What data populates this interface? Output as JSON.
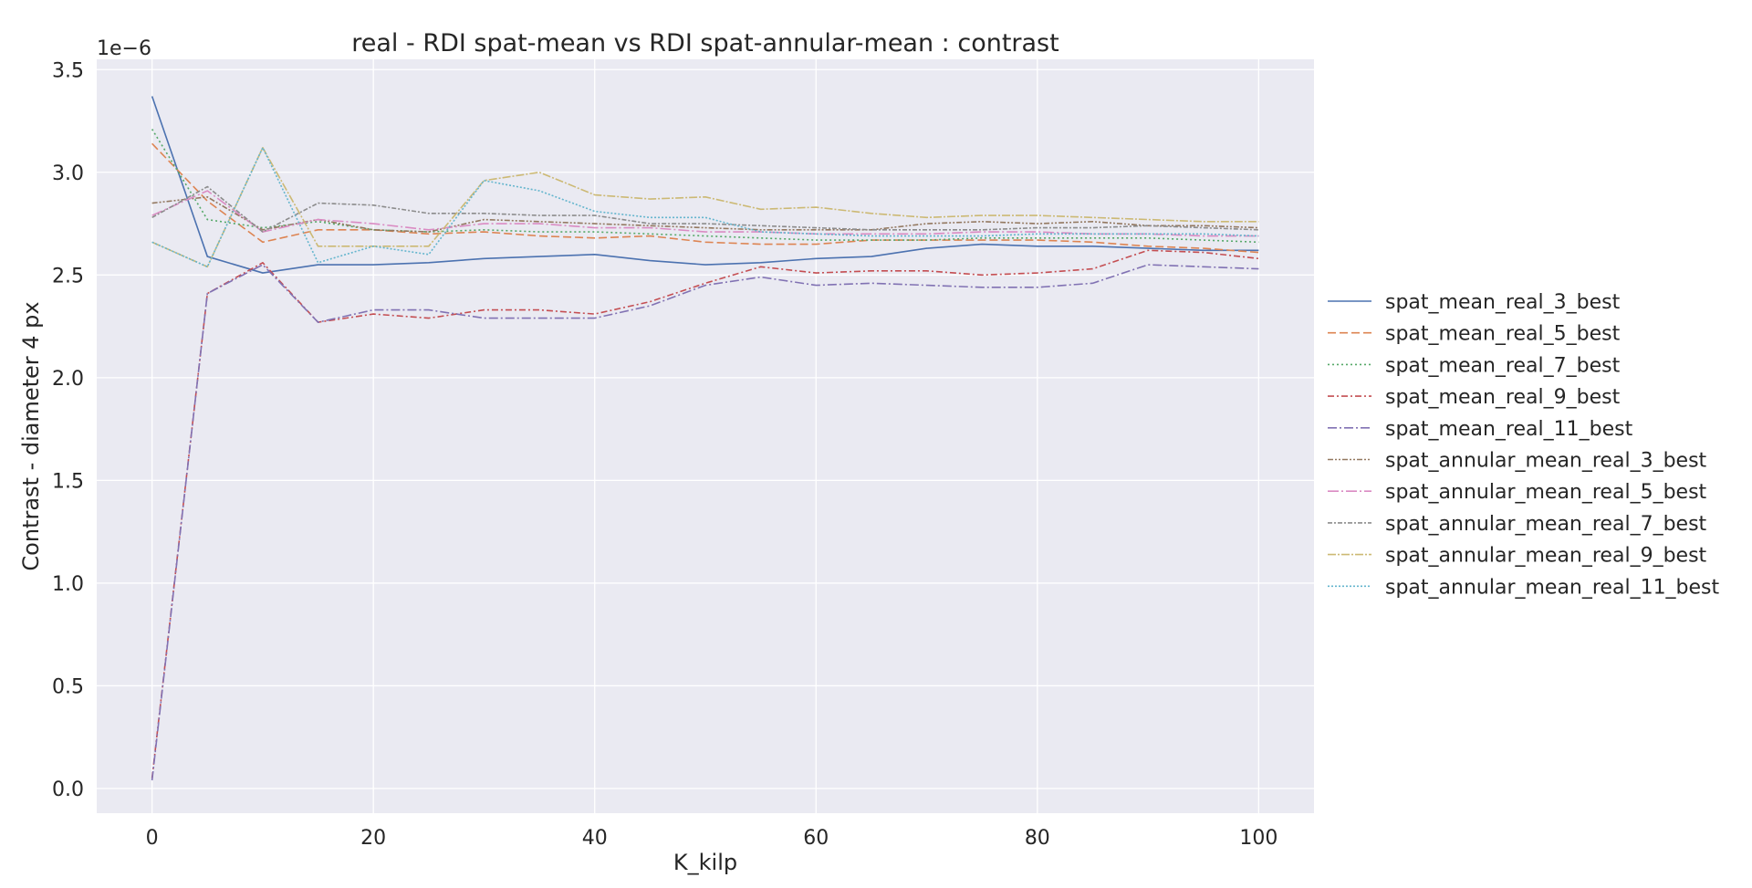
{
  "chart_data": {
    "type": "line",
    "title": "real - RDI spat-mean vs RDI spat-annular-mean : contrast",
    "xlabel": "K_kilp",
    "ylabel": "Contrast - diameter 4 px",
    "y_offset_label": "1e−6",
    "y_scale": 1e-06,
    "xlim": [
      -5,
      105
    ],
    "ylim": [
      -0.12,
      3.55
    ],
    "xticks": [
      0,
      20,
      40,
      60,
      80,
      100
    ],
    "xtick_labels": [
      "0",
      "20",
      "40",
      "60",
      "80",
      "100"
    ],
    "yticks": [
      0.0,
      0.5,
      1.0,
      1.5,
      2.0,
      2.5,
      3.0,
      3.5
    ],
    "ytick_labels": [
      "0.0",
      "0.5",
      "1.0",
      "1.5",
      "2.0",
      "2.5",
      "3.0",
      "3.5"
    ],
    "grid": true,
    "legend_placement": "outside right",
    "background": "#eaeaf2",
    "x": [
      0,
      5,
      10,
      15,
      20,
      25,
      30,
      35,
      40,
      45,
      50,
      55,
      60,
      65,
      70,
      75,
      80,
      85,
      90,
      95,
      100
    ],
    "series": [
      {
        "name": "spat_mean_real_3_best",
        "color": "#4c72b0",
        "dash": "",
        "values": [
          3.37,
          2.59,
          2.51,
          2.55,
          2.55,
          2.56,
          2.58,
          2.59,
          2.6,
          2.57,
          2.55,
          2.56,
          2.58,
          2.59,
          2.63,
          2.65,
          2.64,
          2.64,
          2.63,
          2.62,
          2.62
        ]
      },
      {
        "name": "spat_mean_real_5_best",
        "color": "#dd8452",
        "dash": "9,4",
        "values": [
          3.14,
          2.86,
          2.66,
          2.72,
          2.72,
          2.7,
          2.71,
          2.69,
          2.68,
          2.69,
          2.66,
          2.65,
          2.65,
          2.67,
          2.67,
          2.67,
          2.67,
          2.66,
          2.64,
          2.63,
          2.61
        ]
      },
      {
        "name": "spat_mean_real_7_best",
        "color": "#55a868",
        "dash": "2,3",
        "values": [
          3.21,
          2.77,
          2.73,
          2.76,
          2.72,
          2.71,
          2.72,
          2.71,
          2.71,
          2.7,
          2.69,
          2.68,
          2.67,
          2.67,
          2.67,
          2.68,
          2.68,
          2.68,
          2.68,
          2.67,
          2.66
        ]
      },
      {
        "name": "spat_mean_real_9_best",
        "color": "#c44e52",
        "dash": "7,3,2,3",
        "values": [
          0.05,
          2.41,
          2.56,
          2.27,
          2.31,
          2.29,
          2.33,
          2.33,
          2.31,
          2.37,
          2.46,
          2.54,
          2.51,
          2.52,
          2.52,
          2.5,
          2.51,
          2.53,
          2.62,
          2.61,
          2.58
        ]
      },
      {
        "name": "spat_mean_real_11_best",
        "color": "#8172b3",
        "dash": "10,3,2,3",
        "values": [
          0.04,
          2.41,
          2.55,
          2.27,
          2.33,
          2.33,
          2.29,
          2.29,
          2.29,
          2.35,
          2.45,
          2.49,
          2.45,
          2.46,
          2.45,
          2.44,
          2.44,
          2.46,
          2.55,
          2.54,
          2.53
        ]
      },
      {
        "name": "spat_annular_mean_real_3_best",
        "color": "#937860",
        "dash": "6,2,2,2,2,2",
        "values": [
          2.85,
          2.88,
          2.72,
          2.77,
          2.72,
          2.71,
          2.77,
          2.76,
          2.75,
          2.74,
          2.73,
          2.72,
          2.72,
          2.72,
          2.75,
          2.76,
          2.75,
          2.76,
          2.74,
          2.74,
          2.73
        ]
      },
      {
        "name": "spat_annular_mean_real_5_best",
        "color": "#da8bc3",
        "dash": "12,3,2,3",
        "values": [
          2.79,
          2.91,
          2.71,
          2.77,
          2.75,
          2.72,
          2.75,
          2.75,
          2.73,
          2.73,
          2.71,
          2.71,
          2.7,
          2.7,
          2.7,
          2.71,
          2.71,
          2.7,
          2.7,
          2.69,
          2.69
        ]
      },
      {
        "name": "spat_annular_mean_real_7_best",
        "color": "#8c8c8c",
        "dash": "5,2,2,2",
        "values": [
          2.78,
          2.93,
          2.71,
          2.85,
          2.84,
          2.8,
          2.8,
          2.79,
          2.79,
          2.75,
          2.75,
          2.74,
          2.73,
          2.72,
          2.72,
          2.72,
          2.73,
          2.73,
          2.74,
          2.73,
          2.72
        ]
      },
      {
        "name": "spat_annular_mean_real_9_best",
        "color": "#ccb974",
        "dash": "9,2,2,2",
        "values": [
          2.66,
          2.54,
          3.12,
          2.64,
          2.64,
          2.64,
          2.96,
          3.0,
          2.89,
          2.87,
          2.88,
          2.82,
          2.83,
          2.8,
          2.78,
          2.79,
          2.79,
          2.78,
          2.77,
          2.76,
          2.76
        ]
      },
      {
        "name": "spat_annular_mean_real_11_best",
        "color": "#64b5cd",
        "dash": "2,2",
        "values": [
          2.66,
          2.54,
          3.12,
          2.56,
          2.64,
          2.6,
          2.96,
          2.91,
          2.81,
          2.78,
          2.78,
          2.71,
          2.7,
          2.69,
          2.69,
          2.69,
          2.7,
          2.7,
          2.7,
          2.7,
          2.69
        ]
      }
    ]
  }
}
